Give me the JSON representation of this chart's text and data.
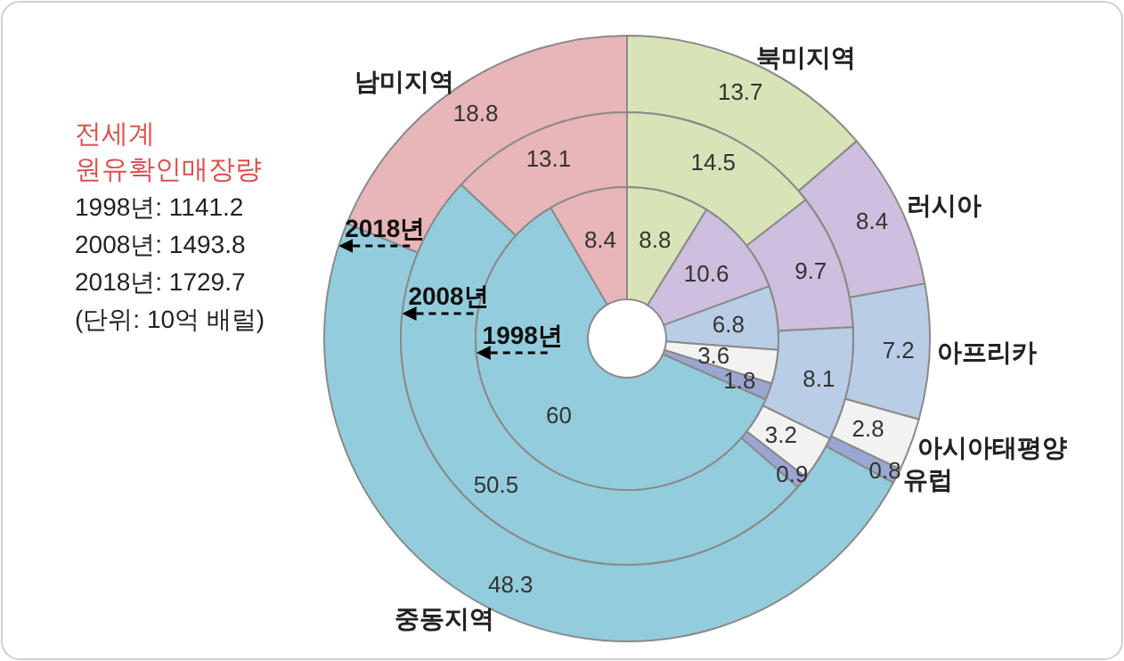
{
  "chart_data": {
    "type": "donut",
    "title": "전세계 원유확인매장량",
    "annotations": [
      "1998년: 1141.2",
      "2008년: 1493.8",
      "2018년: 1729.7",
      "(단위: 10억 배럴)"
    ],
    "categories": [
      "북미지역",
      "러시아",
      "아프리카",
      "아시아태평양",
      "유럽",
      "중동지역",
      "남미지역"
    ],
    "colors": [
      "#d8e4b8",
      "#cdbfdd",
      "#b9cde6",
      "#f2f2f2",
      "#9ba6d2",
      "#93cddd",
      "#e8b5b8"
    ],
    "series": [
      {
        "name": "2018년",
        "values": [
          13.7,
          8.4,
          7.2,
          2.8,
          0.8,
          48.3,
          18.8
        ]
      },
      {
        "name": "2008년",
        "values": [
          14.5,
          9.7,
          8.1,
          3.2,
          0.9,
          50.5,
          13.1
        ]
      },
      {
        "name": "1998년",
        "values": [
          8.8,
          10.6,
          6.8,
          3.6,
          1.8,
          60,
          8.4
        ]
      }
    ],
    "data_labels": true
  }
}
